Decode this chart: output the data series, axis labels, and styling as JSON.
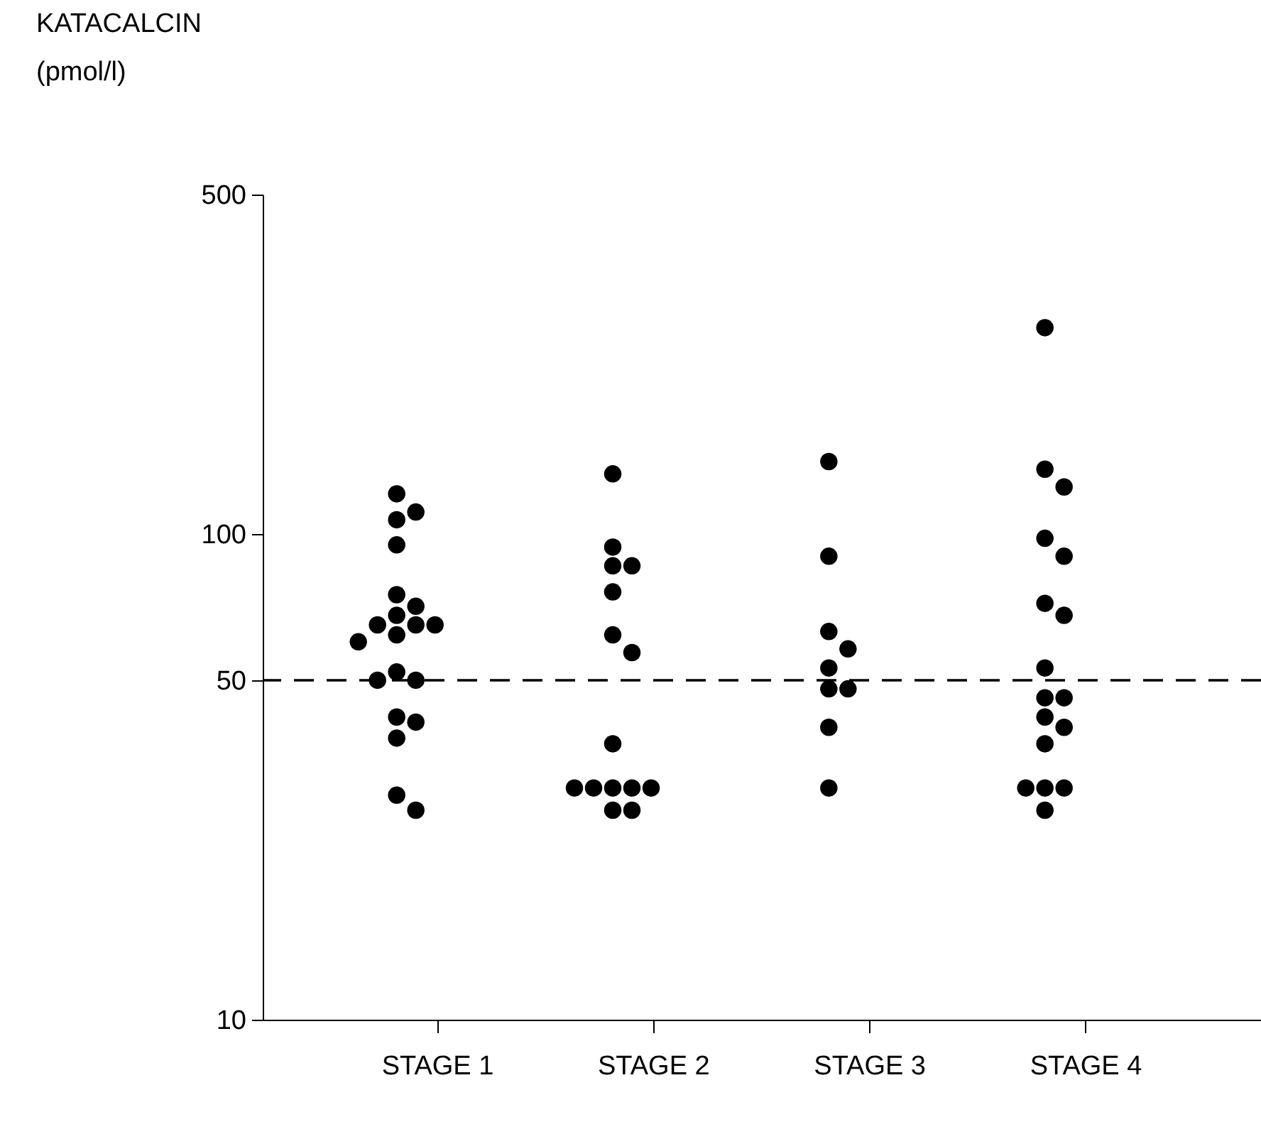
{
  "chart_data": {
    "type": "scatter",
    "ylabel": "KATACALCIN (pmol/l)",
    "categories": [
      "STAGE 1",
      "STAGE 2",
      "STAGE 3",
      "STAGE 4"
    ],
    "series": [
      {
        "color": "#000000",
        "x": [
          "STAGE 1",
          "STAGE 1",
          "STAGE 1",
          "STAGE 1",
          "STAGE 1",
          "STAGE 1",
          "STAGE 1",
          "STAGE 1",
          "STAGE 1",
          "STAGE 1",
          "STAGE 1",
          "STAGE 1",
          "STAGE 1",
          "STAGE 1",
          "STAGE 1",
          "STAGE 1",
          "STAGE 1",
          "STAGE 1",
          "STAGE 1",
          "STAGE 1",
          "STAGE 2",
          "STAGE 2",
          "STAGE 2",
          "STAGE 2",
          "STAGE 2",
          "STAGE 2",
          "STAGE 2",
          "STAGE 2",
          "STAGE 2",
          "STAGE 2",
          "STAGE 2",
          "STAGE 2",
          "STAGE 2",
          "STAGE 2",
          "STAGE 2",
          "STAGE 3",
          "STAGE 3",
          "STAGE 3",
          "STAGE 3",
          "STAGE 3",
          "STAGE 3",
          "STAGE 3",
          "STAGE 3",
          "STAGE 3",
          "STAGE 4",
          "STAGE 4",
          "STAGE 4",
          "STAGE 4",
          "STAGE 4",
          "STAGE 4",
          "STAGE 4",
          "STAGE 4",
          "STAGE 4",
          "STAGE 4",
          "STAGE 4",
          "STAGE 4",
          "STAGE 4",
          "STAGE 4",
          "STAGE 4",
          "STAGE 4",
          "STAGE 4"
        ],
        "values": [
          121,
          111,
          107,
          95,
          75,
          71,
          68,
          65,
          65,
          65,
          62,
          60,
          52,
          50,
          50,
          42,
          41,
          38,
          29,
          27,
          133,
          94,
          86,
          86,
          76,
          62,
          57,
          37,
          30,
          30,
          30,
          30,
          30,
          27,
          27,
          141,
          90,
          63,
          58,
          53,
          48,
          48,
          40,
          30,
          266,
          136,
          125,
          98,
          90,
          72,
          68,
          53,
          46,
          46,
          42,
          40,
          37,
          30,
          30,
          30,
          27
        ]
      }
    ],
    "log": "y",
    "ylim": [
      10,
      500
    ],
    "yticks": [
      10,
      50,
      100,
      500
    ],
    "ref_lines": [
      {
        "axis": "y",
        "value": 50,
        "line_style": "dashed"
      }
    ],
    "marker": "circle",
    "grid": false,
    "legend": false
  }
}
